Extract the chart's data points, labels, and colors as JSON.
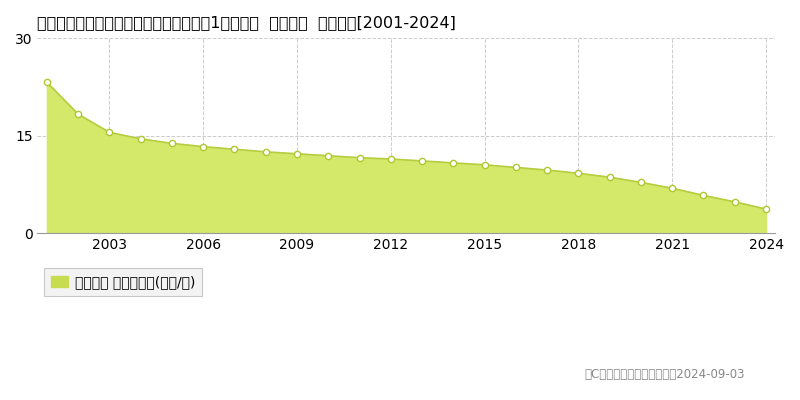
{
  "title": "愛知県知多郡南知多町大字山海字荒布起1２０番２  地価公示  地価推移[2001-2024]",
  "years": [
    2001,
    2002,
    2003,
    2004,
    2005,
    2006,
    2007,
    2008,
    2009,
    2010,
    2011,
    2012,
    2013,
    2014,
    2015,
    2016,
    2017,
    2018,
    2019,
    2020,
    2021,
    2022,
    2023,
    2024
  ],
  "values": [
    23.2,
    18.3,
    15.5,
    14.5,
    13.8,
    13.3,
    12.9,
    12.5,
    12.2,
    11.9,
    11.6,
    11.4,
    11.1,
    10.8,
    10.5,
    10.1,
    9.7,
    9.2,
    8.6,
    7.8,
    6.9,
    5.8,
    4.8,
    3.7
  ],
  "fill_color": "#d4e86a",
  "line_color": "#b8cc40",
  "marker_color": "#ffffff",
  "marker_edge_color": "#b0c830",
  "background_color": "#ffffff",
  "grid_color": "#cccccc",
  "ylim": [
    0,
    30
  ],
  "yticks": [
    0,
    15,
    30
  ],
  "xticks": [
    2003,
    2006,
    2009,
    2012,
    2015,
    2018,
    2021,
    2024
  ],
  "legend_label": "地価公示 平均坂単価(万円/坂)",
  "legend_color": "#c8dc50",
  "copyright_text": "（C）土地価格ドットコム　2024-09-03",
  "title_fontsize": 11.5,
  "tick_fontsize": 10,
  "legend_fontsize": 10,
  "copyright_fontsize": 8.5
}
